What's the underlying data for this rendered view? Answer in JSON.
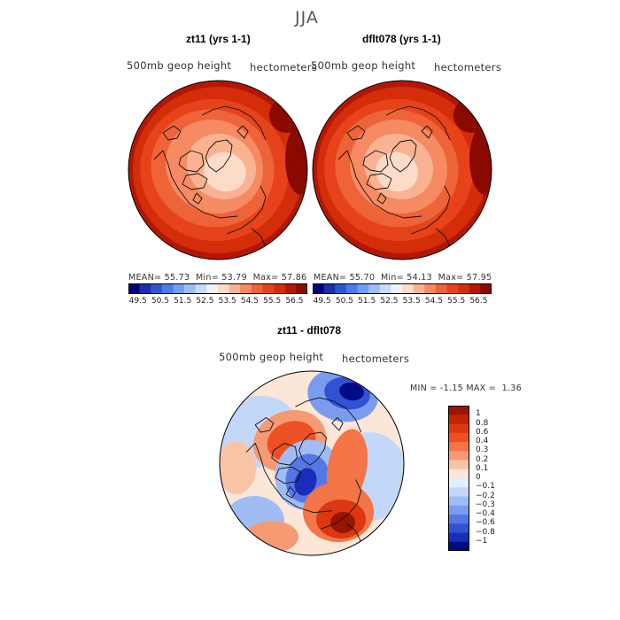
{
  "figure": {
    "title": "JJA",
    "colors": {
      "border": "#000000",
      "coast": "#111111"
    }
  },
  "chart_data": [
    {
      "type": "heatmap",
      "title": "zt11 (yrs 1-1)",
      "variable": "500mb geop height",
      "units": "hectometers",
      "stats": {
        "mean_label": "MEAN=",
        "mean": "55.73",
        "min_label": "Min=",
        "min": "53.79",
        "max_label": "Max=",
        "max": "57.86"
      },
      "colorbar": {
        "levels": [
          "49.5",
          "50.5",
          "51.5",
          "52.5",
          "53.5",
          "54.5",
          "55.5",
          "56.5"
        ],
        "colors": [
          "#00007f",
          "#1a2fa8",
          "#2f55d3",
          "#4a7bea",
          "#6f9ef2",
          "#9cbef7",
          "#c7dcfa",
          "#eef3fb",
          "#fcdcc8",
          "#f9b393",
          "#f58a63",
          "#ef6339",
          "#e6431b",
          "#d42d0a",
          "#b31703",
          "#8a0a00"
        ]
      }
    },
    {
      "type": "heatmap",
      "title": "dflt078 (yrs 1-1)",
      "variable": "500mb geop height",
      "units": "hectometers",
      "stats": {
        "mean_label": "MEAN=",
        "mean": "55.70",
        "min_label": "Min=",
        "min": "54.13",
        "max_label": "Max=",
        "max": "57.95"
      },
      "colorbar": {
        "levels": [
          "49.5",
          "50.5",
          "51.5",
          "52.5",
          "53.5",
          "54.5",
          "55.5",
          "56.5"
        ],
        "colors": [
          "#00007f",
          "#1a2fa8",
          "#2f55d3",
          "#4a7bea",
          "#6f9ef2",
          "#9cbef7",
          "#c7dcfa",
          "#eef3fb",
          "#fcdcc8",
          "#f9b393",
          "#f58a63",
          "#ef6339",
          "#e6431b",
          "#d42d0a",
          "#b31703",
          "#8a0a00"
        ]
      }
    },
    {
      "type": "heatmap",
      "title": "zt11 - dflt078",
      "variable": "500mb geop height",
      "units": "hectometers",
      "stats": {
        "min_label": "MIN =",
        "min": "-1.15",
        "max_label": "MAX =",
        "max": "1.36"
      },
      "colorbar": {
        "levels": [
          "1",
          "0.8",
          "0.6",
          "0.4",
          "0.3",
          "0.2",
          "0.1",
          "0",
          "−0.1",
          "−0.2",
          "−0.3",
          "−0.4",
          "−0.6",
          "−0.8",
          "−1"
        ],
        "colors": [
          "#9a1500",
          "#c12400",
          "#dc3710",
          "#ec5024",
          "#f37548",
          "#f69a74",
          "#f9c3a6",
          "#fbe6d8",
          "#e4eefc",
          "#c3d8f8",
          "#9fbdf4",
          "#7b9cee",
          "#5577e6",
          "#3152d4",
          "#1a2db8",
          "#000c84"
        ]
      }
    }
  ]
}
